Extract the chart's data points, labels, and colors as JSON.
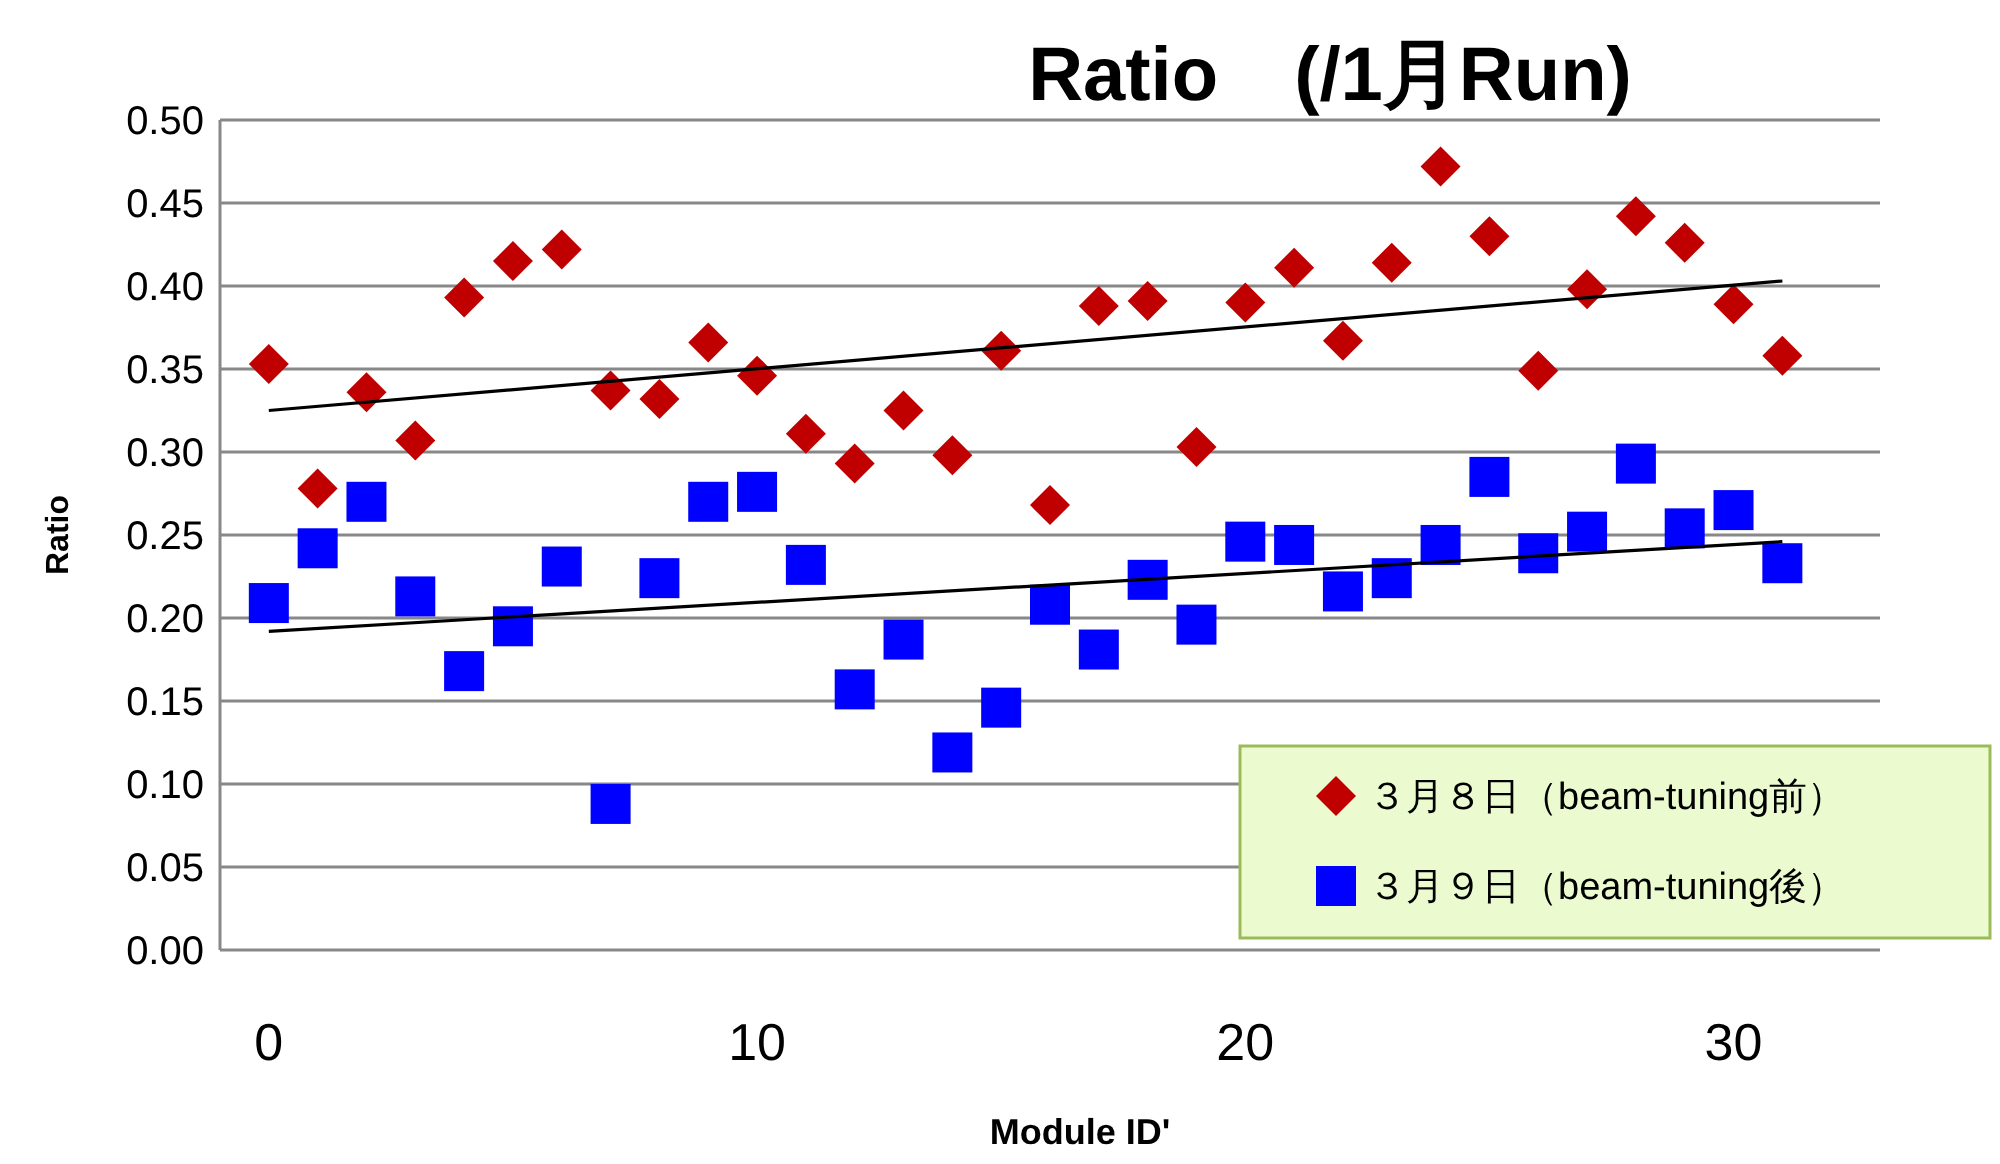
{
  "chart_data": {
    "type": "scatter",
    "title": "Ratio　(/1月Run)",
    "xlabel": "Module ID'",
    "ylabel": "Ratio",
    "x": [
      0,
      1,
      2,
      3,
      4,
      5,
      6,
      7,
      8,
      9,
      10,
      11,
      12,
      13,
      14,
      15,
      16,
      17,
      18,
      19,
      20,
      21,
      22,
      23,
      24,
      25,
      26,
      27,
      28,
      29,
      30,
      31
    ],
    "series": [
      {
        "name": "３月８日（beam-tuning前）",
        "color": "#c00000",
        "marker": "diamond",
        "values": [
          0.353,
          0.278,
          0.336,
          0.307,
          0.393,
          0.415,
          0.422,
          0.337,
          0.332,
          0.366,
          0.346,
          0.311,
          0.293,
          0.325,
          0.298,
          0.361,
          0.268,
          0.388,
          0.391,
          0.303,
          0.39,
          0.411,
          0.367,
          0.414,
          0.472,
          0.43,
          0.349,
          0.398,
          0.442,
          0.426,
          0.389,
          0.358
        ]
      },
      {
        "name": "３月９日（beam-tuning後）",
        "color": "#0000ff",
        "marker": "square",
        "values": [
          0.209,
          0.242,
          0.27,
          0.213,
          0.168,
          0.195,
          0.231,
          0.088,
          0.224,
          0.27,
          0.276,
          0.232,
          0.157,
          0.187,
          0.119,
          0.146,
          0.208,
          0.181,
          0.223,
          0.196,
          0.246,
          0.244,
          0.216,
          0.224,
          0.244,
          0.285,
          0.239,
          0.252,
          0.293,
          0.254,
          0.265,
          0.233
        ]
      },
      {
        "type": "line",
        "color": "#000000",
        "marker": "none",
        "values": [
          0.325,
          null,
          null,
          null,
          null,
          null,
          null,
          null,
          null,
          null,
          null,
          null,
          null,
          null,
          null,
          null,
          null,
          null,
          null,
          null,
          null,
          null,
          null,
          null,
          null,
          null,
          null,
          null,
          null,
          null,
          null,
          0.403
        ]
      },
      {
        "type": "line",
        "color": "#000000",
        "marker": "none",
        "values": [
          0.192,
          null,
          null,
          null,
          null,
          null,
          null,
          null,
          null,
          null,
          null,
          null,
          null,
          null,
          null,
          null,
          null,
          null,
          null,
          null,
          null,
          null,
          null,
          null,
          null,
          null,
          null,
          null,
          null,
          null,
          null,
          0.246
        ]
      }
    ],
    "xlim": [
      -1,
      33
    ],
    "xticks": [
      0,
      10,
      20,
      30
    ],
    "ylim": [
      0,
      0.5
    ],
    "yticks": [
      {
        "value": 0,
        "label": "0.00"
      },
      {
        "value": 0.05,
        "label": "0.05"
      },
      {
        "value": 0.1,
        "label": "0.10"
      },
      {
        "value": 0.15,
        "label": "0.15"
      },
      {
        "value": 0.2,
        "label": "0.20"
      },
      {
        "value": 0.25,
        "label": "0.25"
      },
      {
        "value": 0.3,
        "label": "0.30"
      },
      {
        "value": 0.35,
        "label": "0.35"
      },
      {
        "value": 0.4,
        "label": "0.40"
      },
      {
        "value": 0.45,
        "label": "0.45"
      },
      {
        "value": 0.5,
        "label": "0.50"
      }
    ],
    "grid": "y",
    "legend": "bottom right"
  }
}
